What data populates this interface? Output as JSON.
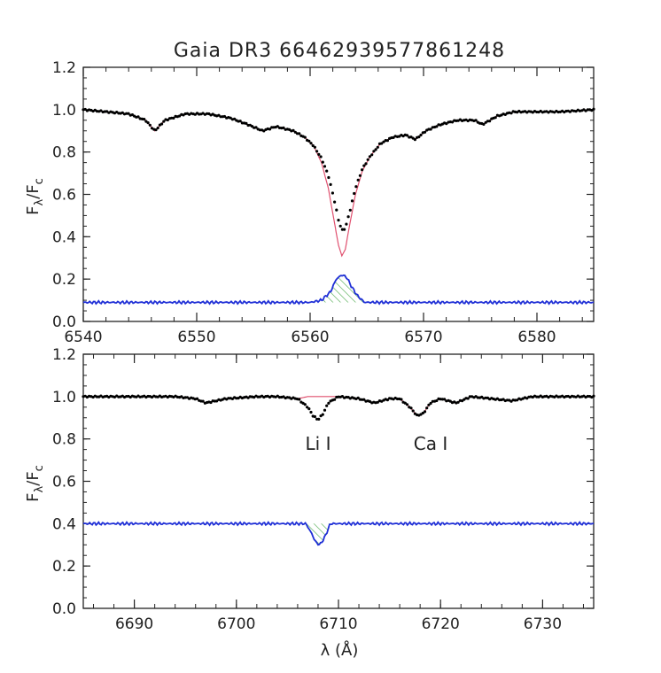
{
  "figure": {
    "title": "Gaia DR3 6646293957786124​8",
    "xlabel": "λ (Å)",
    "ylabel_main": "F",
    "ylabel_sub1": "λ",
    "ylabel_mid": "/F",
    "ylabel_sub2": "c"
  },
  "colors": {
    "observed": "#000000",
    "model": "#e0506f",
    "difference": "#1f2fd6",
    "hatch": "#3fa33f",
    "axis": "#222222"
  },
  "chart_data": [
    {
      "type": "line",
      "panel": "top",
      "xlim": [
        6540,
        6585
      ],
      "ylim": [
        0.0,
        1.2
      ],
      "xticks": [
        "6540",
        "6550",
        "6560",
        "6570",
        "6580"
      ],
      "yticks": [
        "0.0",
        "0.2",
        "0.4",
        "0.6",
        "0.8",
        "1.0",
        "1.2"
      ],
      "series": [
        {
          "kind": "observed-points",
          "x": [
            6540,
            6542,
            6544,
            6545.5,
            6546.3,
            6547.2,
            6549,
            6551,
            6553,
            6554.5,
            6555.8,
            6557,
            6558.5,
            6559.5,
            6560.3,
            6561,
            6561.6,
            6562.1,
            6562.5,
            6562.8,
            6563.1,
            6563.5,
            6564,
            6564.6,
            6565.3,
            6566.2,
            6567.3,
            6568.4,
            6569.3,
            6570.2,
            6571.5,
            6573,
            6574.5,
            6575.2,
            6576.5,
            6578,
            6580,
            6582,
            6585
          ],
          "y": [
            1.0,
            0.99,
            0.98,
            0.95,
            0.9,
            0.95,
            0.98,
            0.98,
            0.96,
            0.93,
            0.9,
            0.92,
            0.9,
            0.87,
            0.83,
            0.77,
            0.69,
            0.58,
            0.48,
            0.43,
            0.44,
            0.52,
            0.63,
            0.72,
            0.78,
            0.84,
            0.87,
            0.88,
            0.86,
            0.9,
            0.93,
            0.95,
            0.95,
            0.93,
            0.97,
            0.99,
            0.99,
            0.99,
            1.0
          ]
        },
        {
          "kind": "model-line",
          "x": [
            6540,
            6542,
            6544,
            6545.5,
            6546.3,
            6547.2,
            6549,
            6551,
            6553,
            6554.5,
            6555.8,
            6557,
            6558.5,
            6559.5,
            6560.3,
            6561,
            6561.6,
            6562.1,
            6562.5,
            6562.8,
            6563.1,
            6563.5,
            6564,
            6564.6,
            6565.3,
            6566.2,
            6567.3,
            6568.4,
            6569.3,
            6570.2,
            6571.5,
            6573,
            6574.5,
            6575.2,
            6576.5,
            6578,
            6580,
            6582,
            6585
          ],
          "y": [
            1.0,
            0.99,
            0.98,
            0.95,
            0.9,
            0.95,
            0.98,
            0.98,
            0.96,
            0.93,
            0.9,
            0.92,
            0.9,
            0.87,
            0.83,
            0.75,
            0.63,
            0.48,
            0.36,
            0.31,
            0.34,
            0.46,
            0.6,
            0.71,
            0.78,
            0.84,
            0.87,
            0.88,
            0.86,
            0.9,
            0.93,
            0.95,
            0.95,
            0.93,
            0.97,
            0.99,
            0.99,
            0.99,
            1.0
          ]
        },
        {
          "kind": "difference-line",
          "x": [
            6540,
            6542,
            6544,
            6546,
            6548,
            6550,
            6552,
            6554,
            6556,
            6558,
            6560,
            6561,
            6561.8,
            6562.3,
            6562.8,
            6563.2,
            6563.7,
            6564.2,
            6564.8,
            6566,
            6568,
            6570,
            6572,
            6574,
            6576,
            6578,
            6580,
            6582,
            6585
          ],
          "y": [
            0.09,
            0.09,
            0.09,
            0.09,
            0.09,
            0.09,
            0.09,
            0.09,
            0.09,
            0.09,
            0.09,
            0.1,
            0.14,
            0.2,
            0.22,
            0.21,
            0.16,
            0.12,
            0.09,
            0.09,
            0.09,
            0.09,
            0.09,
            0.09,
            0.09,
            0.09,
            0.09,
            0.09,
            0.09
          ]
        }
      ],
      "hatched_region": [
        6561,
        6564.8
      ]
    },
    {
      "type": "line",
      "panel": "bottom",
      "xlim": [
        6685,
        6735
      ],
      "ylim": [
        0.0,
        1.2
      ],
      "xticks": [
        "6690",
        "6700",
        "6710",
        "6720",
        "6730"
      ],
      "yticks": [
        "0.0",
        "0.2",
        "0.4",
        "0.6",
        "0.8",
        "1.0",
        "1.2"
      ],
      "annotations": [
        "Li I",
        "Ca I"
      ],
      "series": [
        {
          "kind": "observed-points",
          "x": [
            6685,
            6688,
            6691,
            6694,
            6696,
            6697,
            6699,
            6702,
            6704,
            6706,
            6707,
            6707.5,
            6708,
            6708.5,
            6709,
            6710,
            6712,
            6713.5,
            6715,
            6716,
            6717,
            6717.7,
            6718.3,
            6719,
            6720,
            6721.5,
            6723,
            6725,
            6727,
            6729,
            6731,
            6733,
            6735
          ],
          "y": [
            1.0,
            1.0,
            1.0,
            1.0,
            0.99,
            0.97,
            0.99,
            1.0,
            1.0,
            0.99,
            0.95,
            0.91,
            0.89,
            0.92,
            0.97,
            1.0,
            0.99,
            0.97,
            0.99,
            0.99,
            0.95,
            0.91,
            0.92,
            0.97,
            0.99,
            0.97,
            1.0,
            0.99,
            0.98,
            1.0,
            1.0,
            1.0,
            1.0
          ]
        },
        {
          "kind": "model-line",
          "x": [
            6685,
            6688,
            6691,
            6694,
            6696,
            6697,
            6699,
            6702,
            6704,
            6706,
            6707,
            6707.5,
            6708,
            6708.5,
            6709,
            6710,
            6712,
            6713.5,
            6715,
            6716,
            6717,
            6717.7,
            6718.3,
            6719,
            6720,
            6721.5,
            6723,
            6725,
            6727,
            6729,
            6731,
            6733,
            6735
          ],
          "y": [
            1.0,
            1.0,
            1.0,
            1.0,
            0.99,
            0.97,
            0.99,
            1.0,
            1.0,
            0.99,
            1.0,
            1.0,
            1.0,
            1.0,
            1.0,
            1.0,
            0.99,
            0.97,
            0.99,
            0.99,
            0.95,
            0.91,
            0.92,
            0.97,
            0.99,
            0.97,
            1.0,
            0.99,
            0.98,
            1.0,
            1.0,
            1.0,
            1.0
          ]
        },
        {
          "kind": "difference-line",
          "x": [
            6685,
            6690,
            6695,
            6700,
            6705,
            6706.8,
            6707.3,
            6707.8,
            6708.2,
            6708.7,
            6709.2,
            6710,
            6715,
            6720,
            6725,
            6730,
            6735
          ],
          "y": [
            0.4,
            0.4,
            0.4,
            0.4,
            0.4,
            0.4,
            0.36,
            0.31,
            0.3,
            0.34,
            0.4,
            0.4,
            0.4,
            0.4,
            0.4,
            0.4,
            0.4
          ]
        }
      ],
      "hatched_region": [
        6706.8,
        6709.2
      ]
    }
  ]
}
